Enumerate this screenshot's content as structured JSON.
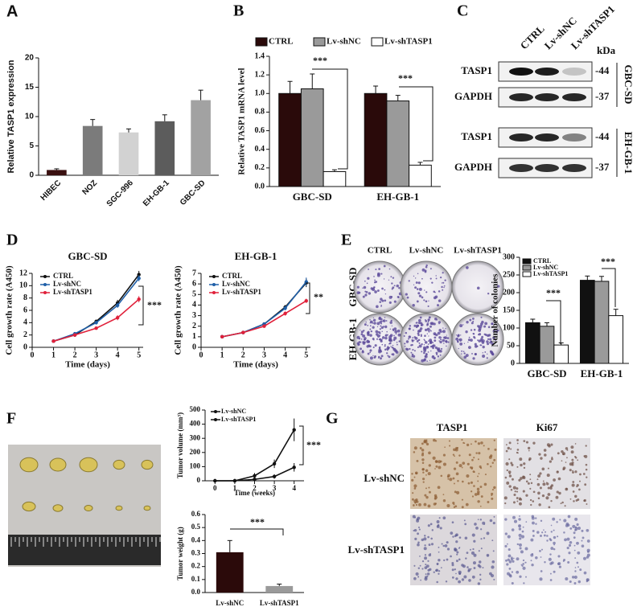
{
  "panels": [
    "A",
    "B",
    "C",
    "D",
    "E",
    "F",
    "G"
  ],
  "blot": {
    "lanes": [
      "CTRL",
      "Lv-shNC",
      "Lv-shTASP1"
    ],
    "unit": "kDa",
    "rows": [
      {
        "protein": "TASP1",
        "size": "-44"
      },
      {
        "protein": "GAPDH",
        "size": "-37"
      },
      {
        "protein": "TASP1",
        "size": "-44"
      },
      {
        "protein": "GAPDH",
        "size": "-37"
      }
    ],
    "groups": [
      "GBC-SD",
      "EH-GB-1"
    ]
  },
  "colony": {
    "columns": [
      "CTRL",
      "Lv-shNC",
      "Lv-shTASP1"
    ],
    "rows": [
      "GBC-SD",
      "EH-GB-1"
    ]
  },
  "ihc": {
    "columns": [
      "TASP1",
      "Ki67"
    ],
    "rows": [
      "Lv-shNC",
      "Lv-shTASP1"
    ]
  },
  "chart_data": [
    {
      "type": "bar",
      "ylabel": "Relative TASP1 expression",
      "categories": [
        "HIBEC",
        "NOZ",
        "SGC-996",
        "EH-GB-1",
        "GBC-SD"
      ],
      "values": [
        0.9,
        8.4,
        7.3,
        9.2,
        12.8
      ],
      "errors": [
        0.2,
        1.1,
        0.6,
        1.1,
        1.7
      ],
      "colors": [
        "#3a1010",
        "#7b7b7b",
        "#d2d2d2",
        "#5c5c5c",
        "#a2a2a2"
      ],
      "ylim": [
        0,
        20
      ],
      "yticks": [
        0,
        5,
        10,
        15,
        20
      ]
    },
    {
      "type": "bar",
      "ylabel": "Relative TASP1 mRNA level",
      "categories": [
        "GBC-SD",
        "EH-GB-1"
      ],
      "series": [
        {
          "name": "CTRL",
          "color": "#2a0a0a",
          "values": [
            1.0,
            1.0
          ],
          "errors": [
            0.13,
            0.08
          ]
        },
        {
          "name": "Lv-shNC",
          "color": "#9a9a9a",
          "values": [
            1.05,
            0.92
          ],
          "errors": [
            0.16,
            0.06
          ]
        },
        {
          "name": "Lv-shTASP1",
          "color": "#ffffff",
          "values": [
            0.16,
            0.23
          ],
          "errors": [
            0.02,
            0.03
          ]
        }
      ],
      "ylim": [
        0,
        1.4
      ],
      "yticks": [
        {
          "value": 0,
          "label": "0.0"
        },
        0.2,
        0.4,
        0.6,
        0.8,
        {
          "value": 1,
          "label": "1.0"
        },
        1.2,
        1.4
      ],
      "annotations": [
        "***",
        "***"
      ]
    },
    {
      "type": "line",
      "title": "GBC-SD",
      "xlabel": "Time (days)",
      "ylabel": "Cell growth rate (A450)",
      "x": [
        1,
        2,
        3,
        4,
        5
      ],
      "series": [
        {
          "name": "CTRL",
          "color": "#111111",
          "values": [
            1,
            2.0,
            4.2,
            7.2,
            11.8
          ],
          "errors": [
            0,
            0.1,
            0.3,
            0.5,
            0.6
          ]
        },
        {
          "name": "Lv-shNC",
          "color": "#1f5fa8",
          "values": [
            1,
            2.2,
            4.0,
            6.8,
            11.2
          ],
          "errors": [
            0,
            0.1,
            0.3,
            0.4,
            0.5
          ]
        },
        {
          "name": "Lv-shTASP1",
          "color": "#e0203a",
          "values": [
            1,
            2.0,
            3.1,
            4.8,
            7.8
          ],
          "errors": [
            0,
            0.1,
            0.2,
            0.4,
            0.5
          ]
        }
      ],
      "xlim": [
        0,
        5.2
      ],
      "xticks": [
        0,
        1,
        2,
        3,
        4,
        5
      ],
      "ylim": [
        0,
        12
      ],
      "yticks": [
        0,
        2,
        4,
        6,
        8,
        10,
        12
      ],
      "annotations": [
        "***"
      ]
    },
    {
      "type": "line",
      "title": "EH-GB-1",
      "xlabel": "Time (days)",
      "ylabel": "Cell growth rate (A450)",
      "x": [
        1,
        2,
        3,
        4,
        5
      ],
      "series": [
        {
          "name": "CTRL",
          "color": "#111111",
          "values": [
            1,
            1.4,
            2.2,
            3.8,
            6.1
          ],
          "errors": [
            0,
            0.05,
            0.1,
            0.2,
            0.4
          ]
        },
        {
          "name": "Lv-shNC",
          "color": "#1f5fa8",
          "values": [
            1,
            1.4,
            2.2,
            3.7,
            6.2
          ],
          "errors": [
            0,
            0.05,
            0.1,
            0.2,
            0.4
          ]
        },
        {
          "name": "Lv-shTASP1",
          "color": "#e0203a",
          "values": [
            1,
            1.4,
            2.0,
            3.2,
            4.4
          ],
          "errors": [
            0,
            0.05,
            0.1,
            0.2,
            0.2
          ]
        }
      ],
      "xlim": [
        0,
        5.2
      ],
      "xticks": [
        0,
        1,
        2,
        3,
        4,
        5
      ],
      "ylim": [
        0,
        7
      ],
      "yticks": [
        0,
        1,
        2,
        3,
        4,
        5,
        6,
        7
      ],
      "annotations": [
        "**"
      ]
    },
    {
      "type": "bar",
      "ylabel": "Number of colonies",
      "categories": [
        "GBC-SD",
        "EH-GB-1"
      ],
      "series": [
        {
          "name": "CTRL",
          "color": "#111111",
          "values": [
            115,
            235
          ],
          "errors": [
            10,
            12
          ]
        },
        {
          "name": "Lv-shNC",
          "color": "#9a9a9a",
          "values": [
            105,
            232
          ],
          "errors": [
            10,
            14
          ]
        },
        {
          "name": "Lv-shTASP1",
          "color": "#ffffff",
          "values": [
            52,
            135
          ],
          "errors": [
            6,
            18
          ]
        }
      ],
      "ylim": [
        0,
        300
      ],
      "yticks": [
        0,
        50,
        100,
        150,
        200,
        250,
        300
      ],
      "annotations": [
        "***",
        "***"
      ]
    },
    {
      "type": "line",
      "xlabel": "Time (weeks)",
      "ylabel": "Tumor volume (mm³)",
      "x": [
        0,
        1,
        2,
        3,
        4
      ],
      "series": [
        {
          "name": "Lv-shNC",
          "color": "#111111",
          "values": [
            0,
            0,
            35,
            120,
            360
          ],
          "errors": [
            0,
            0,
            20,
            30,
            80
          ]
        },
        {
          "name": "Lv-shTASP1",
          "color": "#111111",
          "values": [
            0,
            0,
            10,
            30,
            95
          ],
          "errors": [
            0,
            0,
            8,
            15,
            30
          ]
        }
      ],
      "xlim": [
        -0.5,
        4.5
      ],
      "xticks": [
        0,
        1,
        2,
        3,
        4
      ],
      "ylim": [
        0,
        500
      ],
      "yticks": [
        0,
        100,
        200,
        300,
        400,
        500
      ],
      "annotations": [
        "***"
      ]
    },
    {
      "type": "bar",
      "ylabel": "Tumor weight (g)",
      "categories": [
        "Lv-shNC",
        "Lv-shTASP1"
      ],
      "values": [
        0.31,
        0.05
      ],
      "errors": [
        0.09,
        0.015
      ],
      "colors": [
        "#2b0a0a",
        "#9a9a9a"
      ],
      "ylim": [
        0,
        0.6
      ],
      "yticks": [
        {
          "value": 0,
          "label": "0.0"
        },
        0.1,
        0.2,
        0.3,
        0.4,
        0.5,
        0.6
      ],
      "annotations": [
        "***"
      ]
    }
  ]
}
